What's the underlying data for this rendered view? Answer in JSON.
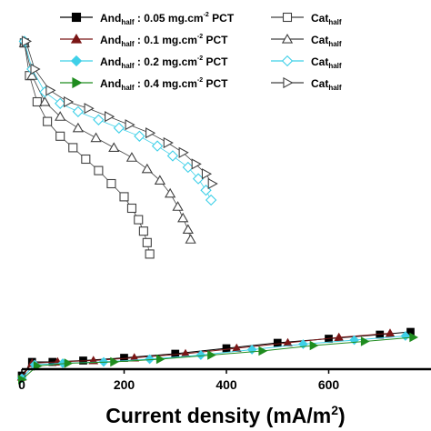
{
  "chart_data": {
    "type": "scatter",
    "xlabel": "Current density (mA/m",
    "xlabel_sup": "2",
    "xlabel_tail": ")",
    "x_ticks": [
      "0",
      "200",
      "400",
      "600"
    ],
    "x_tick_values": [
      0,
      200,
      400,
      600
    ],
    "xlim": [
      -30,
      770
    ],
    "legend_position": "top",
    "legend": [
      {
        "prefix": "And",
        "sub": "half",
        "text": " : 0.05 mg.cm",
        "sup": "-2",
        "suffix": " PCT",
        "color": "#000000",
        "marker": "square",
        "filled": true
      },
      {
        "prefix": "And",
        "sub": "half",
        "text": " : 0.1 mg.cm",
        "sup": "-2",
        "suffix": " PCT",
        "color": "#7a1616",
        "marker": "triangle",
        "filled": true
      },
      {
        "prefix": "And",
        "sub": "half",
        "text": " : 0.2 mg.cm",
        "sup": "-2",
        "suffix": " PCT",
        "color": "#3fd0e8",
        "marker": "diamond",
        "filled": true
      },
      {
        "prefix": "And",
        "sub": "half",
        "text": " : 0.4 mg.cm",
        "sup": "-2",
        "suffix": " PCT",
        "color": "#1f8c1f",
        "marker": "triangle-right",
        "filled": true
      },
      {
        "prefix": "Cat",
        "sub": "half",
        "text": "",
        "sup": "",
        "suffix": "",
        "color": "#404040",
        "marker": "square",
        "filled": false
      },
      {
        "prefix": "Cat",
        "sub": "half",
        "text": "",
        "sup": "",
        "suffix": "",
        "color": "#404040",
        "marker": "triangle",
        "filled": false
      },
      {
        "prefix": "Cat",
        "sub": "half",
        "text": "",
        "sup": "",
        "suffix": "",
        "color": "#3fd0e8",
        "marker": "diamond",
        "filled": false
      },
      {
        "prefix": "Cat",
        "sub": "half",
        "text": "",
        "sup": "",
        "suffix": "",
        "color": "#404040",
        "marker": "triangle-right",
        "filled": false
      }
    ],
    "cat_series": [
      {
        "loading": "0.05",
        "marker": "square",
        "color": "#404040",
        "points": [
          [
            5,
            0.98
          ],
          [
            15,
            0.88
          ],
          [
            30,
            0.8
          ],
          [
            50,
            0.74
          ],
          [
            75,
            0.695
          ],
          [
            100,
            0.66
          ],
          [
            125,
            0.625
          ],
          [
            150,
            0.59
          ],
          [
            175,
            0.55
          ],
          [
            200,
            0.51
          ],
          [
            215,
            0.475
          ],
          [
            228,
            0.44
          ],
          [
            238,
            0.405
          ],
          [
            245,
            0.37
          ],
          [
            250,
            0.335
          ]
        ]
      },
      {
        "loading": "0.1",
        "marker": "triangle",
        "color": "#404040",
        "points": [
          [
            5,
            0.98
          ],
          [
            20,
            0.88
          ],
          [
            45,
            0.8
          ],
          [
            75,
            0.755
          ],
          [
            110,
            0.72
          ],
          [
            145,
            0.69
          ],
          [
            180,
            0.66
          ],
          [
            215,
            0.63
          ],
          [
            245,
            0.595
          ],
          [
            270,
            0.56
          ],
          [
            290,
            0.52
          ],
          [
            305,
            0.48
          ],
          [
            315,
            0.445
          ],
          [
            325,
            0.41
          ],
          [
            330,
            0.38
          ]
        ]
      },
      {
        "loading": "0.2",
        "marker": "diamond",
        "color": "#3fd0e8",
        "points": [
          [
            5,
            0.985
          ],
          [
            20,
            0.9
          ],
          [
            45,
            0.83
          ],
          [
            75,
            0.795
          ],
          [
            110,
            0.77
          ],
          [
            150,
            0.745
          ],
          [
            190,
            0.72
          ],
          [
            230,
            0.695
          ],
          [
            265,
            0.665
          ],
          [
            295,
            0.635
          ],
          [
            325,
            0.6
          ],
          [
            345,
            0.565
          ],
          [
            360,
            0.53
          ],
          [
            370,
            0.5
          ]
        ]
      },
      {
        "loading": "0.4",
        "marker": "triangle-right",
        "color": "#404040",
        "points": [
          [
            8,
            0.985
          ],
          [
            25,
            0.9
          ],
          [
            55,
            0.835
          ],
          [
            90,
            0.8
          ],
          [
            130,
            0.78
          ],
          [
            170,
            0.755
          ],
          [
            210,
            0.73
          ],
          [
            250,
            0.705
          ],
          [
            285,
            0.675
          ],
          [
            315,
            0.645
          ],
          [
            340,
            0.61
          ],
          [
            360,
            0.58
          ],
          [
            372,
            0.55
          ]
        ]
      }
    ],
    "and_series": [
      {
        "loading": "0.05",
        "marker": "square",
        "color": "#000000",
        "points": [
          [
            0,
            -0.05
          ],
          [
            20,
            0.0
          ],
          [
            60,
            0.0
          ],
          [
            120,
            0.005
          ],
          [
            200,
            0.015
          ],
          [
            300,
            0.03
          ],
          [
            400,
            0.05
          ],
          [
            500,
            0.07
          ],
          [
            600,
            0.085
          ],
          [
            700,
            0.1
          ],
          [
            760,
            0.11
          ]
        ]
      },
      {
        "loading": "0.1",
        "marker": "triangle",
        "color": "#7a1616",
        "points": [
          [
            0,
            -0.055
          ],
          [
            20,
            -0.005
          ],
          [
            70,
            0.0
          ],
          [
            140,
            0.005
          ],
          [
            220,
            0.015
          ],
          [
            320,
            0.03
          ],
          [
            420,
            0.05
          ],
          [
            520,
            0.07
          ],
          [
            620,
            0.09
          ],
          [
            720,
            0.105
          ]
        ]
      },
      {
        "loading": "0.2",
        "marker": "diamond",
        "color": "#3fd0e8",
        "points": [
          [
            0,
            -0.06
          ],
          [
            25,
            -0.01
          ],
          [
            80,
            -0.005
          ],
          [
            160,
            0.0
          ],
          [
            250,
            0.01
          ],
          [
            350,
            0.025
          ],
          [
            450,
            0.045
          ],
          [
            550,
            0.065
          ],
          [
            650,
            0.08
          ],
          [
            750,
            0.095
          ]
        ]
      },
      {
        "loading": "0.4",
        "marker": "triangle-right",
        "color": "#1f8c1f",
        "points": [
          [
            0,
            -0.065
          ],
          [
            30,
            -0.015
          ],
          [
            90,
            -0.005
          ],
          [
            180,
            0.0
          ],
          [
            270,
            0.01
          ],
          [
            370,
            0.025
          ],
          [
            470,
            0.04
          ],
          [
            570,
            0.06
          ],
          [
            670,
            0.075
          ],
          [
            765,
            0.09
          ]
        ]
      }
    ]
  }
}
